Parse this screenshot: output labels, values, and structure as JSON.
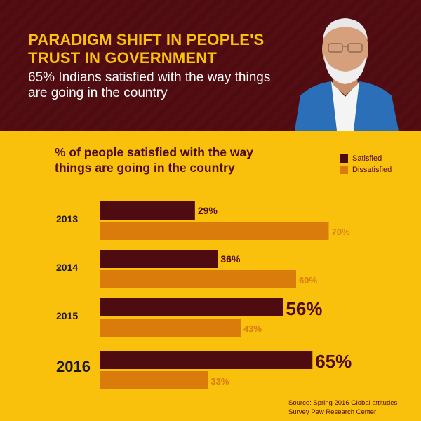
{
  "header": {
    "headline": "PARADIGM SHIFT IN PEOPLE'S TRUST IN GOVERNMENT",
    "subline": "65% Indians satisfied with the way things are going in the country"
  },
  "colors": {
    "header_bg": "#4e0b10",
    "page_bg": "#f9c00c",
    "satisfied": "#4e0b10",
    "dissatisfied": "#d97c0b",
    "headline_text": "#f9c00c"
  },
  "chart_data": {
    "type": "bar",
    "orientation": "horizontal",
    "title": "% of people satisfied with the way things are going in the country",
    "categories": [
      "2013",
      "2014",
      "2015",
      "2016"
    ],
    "series": [
      {
        "name": "Satisfied",
        "values": [
          29,
          36,
          56,
          65
        ],
        "labels": [
          "29%",
          "36%",
          "56%",
          "65%"
        ]
      },
      {
        "name": "Dissatisfied",
        "values": [
          70,
          60,
          43,
          33
        ],
        "labels": [
          "70%",
          "60%",
          "43%",
          "33%"
        ]
      }
    ],
    "xlim": [
      0,
      100
    ],
    "legend_position": "top-right",
    "grid": false
  },
  "legend": {
    "satisfied": "Satisfied",
    "dissatisfied": "Dissatisfied"
  },
  "source": {
    "line1": "Source: Spring 2016 Global attitudes",
    "line2": "Survey Pew Research Center"
  },
  "portrait": {
    "icon": "person-portrait-icon"
  }
}
